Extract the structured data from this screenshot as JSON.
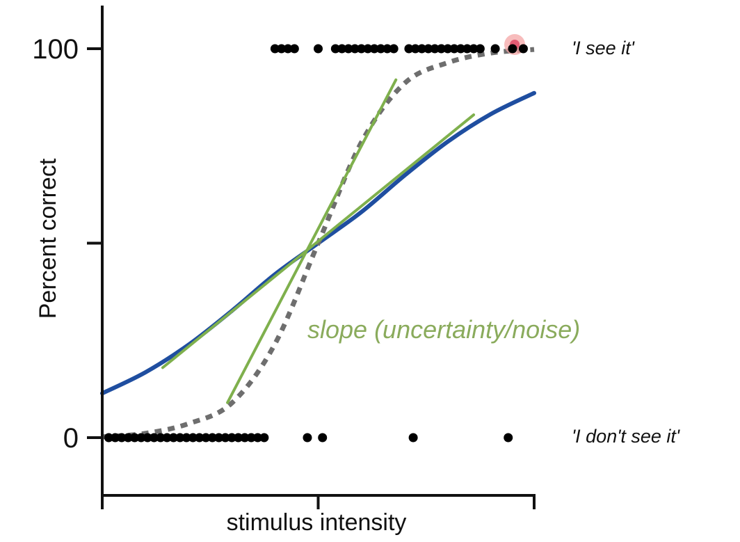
{
  "chart_data": {
    "type": "scatter",
    "xlabel": "stimulus intensity",
    "ylabel": "Percent correct",
    "xlim": [
      0,
      100
    ],
    "ylim": [
      0,
      100
    ],
    "yticks": [
      {
        "value": 0,
        "label": "0"
      },
      {
        "value": 50,
        "label": ""
      },
      {
        "value": 100,
        "label": "100"
      }
    ],
    "xticks": [
      {
        "value": 0,
        "label": ""
      },
      {
        "value": 50,
        "label": ""
      },
      {
        "value": 100,
        "label": ""
      }
    ],
    "response_labels": {
      "yes": "'I see it'",
      "no": "'I don't see it'"
    },
    "annotation": {
      "text": "slope (uncertainty/noise)",
      "color": "#8aab5c"
    },
    "points_seen": [
      [
        40,
        100
      ],
      [
        41.5,
        100
      ],
      [
        43,
        100
      ],
      [
        44.5,
        100
      ],
      [
        50,
        100
      ],
      [
        54,
        100
      ],
      [
        55.5,
        100
      ],
      [
        57,
        100
      ],
      [
        58.5,
        100
      ],
      [
        60,
        100
      ],
      [
        61.5,
        100
      ],
      [
        63,
        100
      ],
      [
        64.5,
        100
      ],
      [
        66,
        100
      ],
      [
        67.5,
        100
      ],
      [
        71,
        100
      ],
      [
        72.5,
        100
      ],
      [
        74,
        100
      ],
      [
        75.5,
        100
      ],
      [
        77,
        100
      ],
      [
        78.5,
        100
      ],
      [
        80,
        100
      ],
      [
        81.5,
        100
      ],
      [
        83,
        100
      ],
      [
        84.5,
        100
      ],
      [
        86,
        100
      ],
      [
        87.5,
        100
      ],
      [
        91,
        100
      ],
      [
        95,
        100
      ],
      [
        97.5,
        100
      ]
    ],
    "points_not_seen": [
      [
        1.5,
        0
      ],
      [
        3,
        0
      ],
      [
        4.5,
        0
      ],
      [
        6,
        0
      ],
      [
        7.5,
        0
      ],
      [
        9,
        0
      ],
      [
        10.5,
        0
      ],
      [
        12,
        0
      ],
      [
        13.5,
        0
      ],
      [
        15,
        0
      ],
      [
        16.5,
        0
      ],
      [
        18,
        0
      ],
      [
        19.5,
        0
      ],
      [
        21,
        0
      ],
      [
        22.5,
        0
      ],
      [
        24,
        0
      ],
      [
        25.5,
        0
      ],
      [
        27,
        0
      ],
      [
        28.5,
        0
      ],
      [
        30,
        0
      ],
      [
        31.5,
        0
      ],
      [
        33,
        0
      ],
      [
        34.5,
        0
      ],
      [
        36,
        0
      ],
      [
        37.5,
        0
      ],
      [
        47.5,
        0
      ],
      [
        51,
        0
      ],
      [
        72,
        0
      ],
      [
        94,
        0
      ]
    ],
    "highlight_point": [
      95.5,
      100
    ],
    "series": [
      {
        "color": "#1f4ea0",
        "style": "solid",
        "x": [
          0,
          10,
          20,
          30,
          40,
          50,
          60,
          70,
          80,
          90,
          100
        ],
        "y": [
          11.4,
          16.8,
          23.9,
          32.6,
          42.0,
          50.0,
          58.0,
          67.4,
          76.1,
          83.2,
          88.6
        ]
      },
      {
        "color": "#6e6e6e",
        "style": "dashed",
        "x": [
          0,
          10,
          20,
          30,
          40,
          50,
          60,
          70,
          80,
          90,
          100
        ],
        "y": [
          0.2,
          1.1,
          3.6,
          8.9,
          24.1,
          50.0,
          75.9,
          91.1,
          96.4,
          98.9,
          99.8
        ]
      },
      {
        "color": "#7fb04d",
        "style": "solid",
        "x": [
          29,
          68
        ],
        "y": [
          9,
          92
        ]
      },
      {
        "color": "#7fb04d",
        "style": "solid",
        "x": [
          14,
          86
        ],
        "y": [
          18,
          83
        ]
      }
    ]
  }
}
